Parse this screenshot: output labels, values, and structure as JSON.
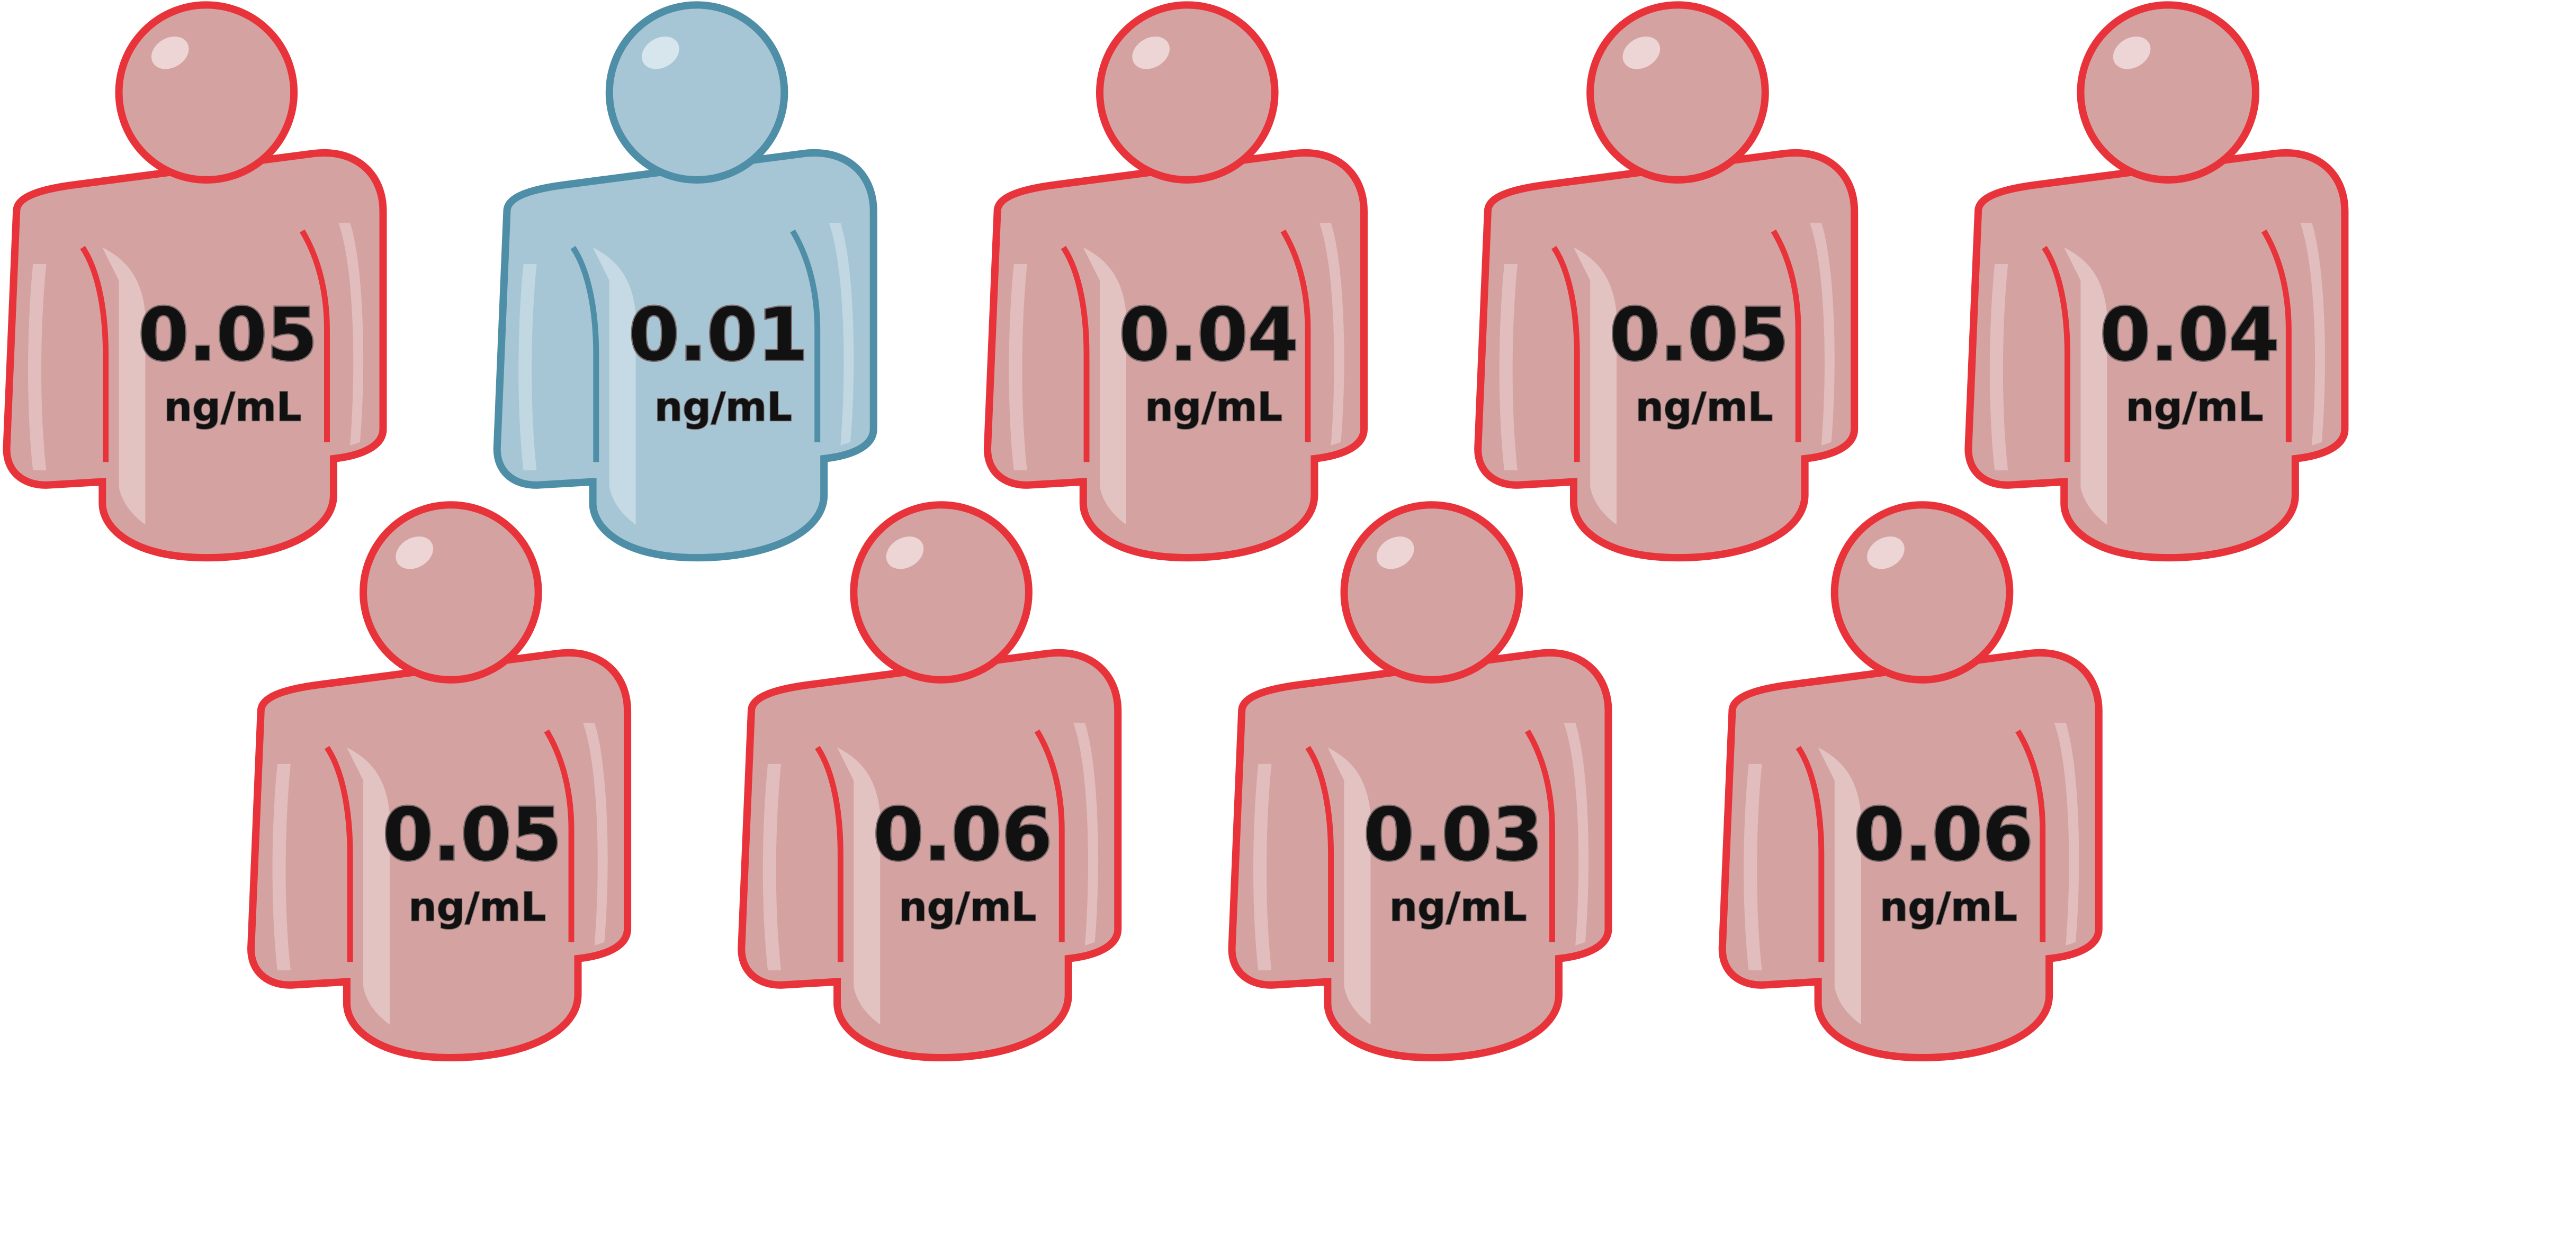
{
  "colors": {
    "high_fill": "#d4a3a1",
    "high_stroke": "#e8333a",
    "low_fill": "#a6c6d6",
    "low_stroke": "#4f8ea7",
    "highlight": "#ffffff",
    "text": "#111111",
    "text_shadow": "#7a6a6a"
  },
  "icon": "person-icon",
  "people": [
    {
      "value": "0.05",
      "unit": "ng/mL",
      "status": "high"
    },
    {
      "value": "0.01",
      "unit": "ng/mL",
      "status": "low"
    },
    {
      "value": "0.04",
      "unit": "ng/mL",
      "status": "high"
    },
    {
      "value": "0.05",
      "unit": "ng/mL",
      "status": "high"
    },
    {
      "value": "0.04",
      "unit": "ng/mL",
      "status": "high"
    },
    {
      "value": "0.05",
      "unit": "ng/mL",
      "status": "high"
    },
    {
      "value": "0.06",
      "unit": "ng/mL",
      "status": "high"
    },
    {
      "value": "0.03",
      "unit": "ng/mL",
      "status": "high"
    },
    {
      "value": "0.06",
      "unit": "ng/mL",
      "status": "high"
    }
  ]
}
